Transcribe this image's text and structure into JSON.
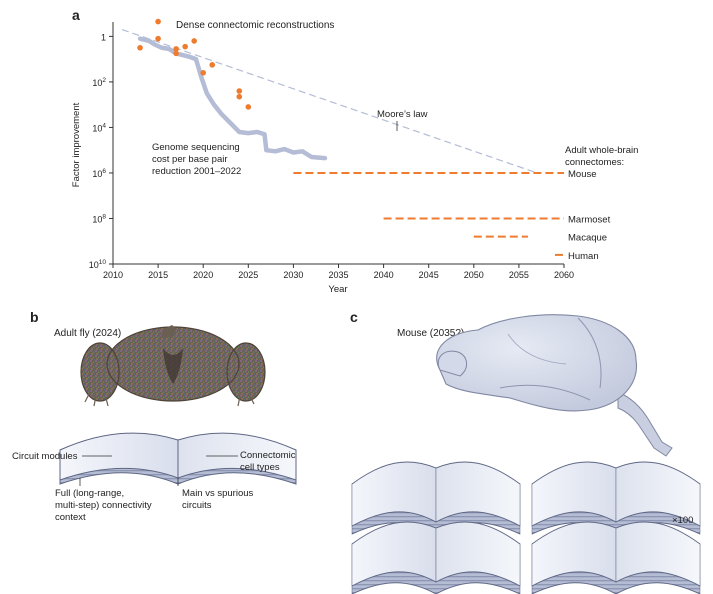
{
  "panels": {
    "a": "a",
    "b": "b",
    "c": "c"
  },
  "chart_data": {
    "type": "scatter",
    "xlabel": "Year",
    "ylabel": "Factor improvement",
    "xlim": [
      2010,
      2060
    ],
    "ylim_log10": [
      -10,
      0.5
    ],
    "x_ticks": [
      "2010",
      "2015",
      "2020",
      "2025",
      "2030",
      "2035",
      "2040",
      "2045",
      "2050",
      "2055",
      "2060"
    ],
    "y_ticks": [
      {
        "base": "1",
        "exp": ""
      },
      {
        "base": "10",
        "exp": "2"
      },
      {
        "base": "10",
        "exp": "4"
      },
      {
        "base": "10",
        "exp": "6"
      },
      {
        "base": "10",
        "exp": "8"
      },
      {
        "base": "10",
        "exp": "10"
      }
    ],
    "series": [
      {
        "name": "Dense connectomic reconstructions",
        "style": "scatter",
        "color": "#ee7b2e",
        "points": [
          {
            "x": 2013,
            "y_log10": -0.5
          },
          {
            "x": 2015,
            "y_log10": 0.65
          },
          {
            "x": 2015,
            "y_log10": -0.1
          },
          {
            "x": 2017,
            "y_log10": -0.55
          },
          {
            "x": 2017,
            "y_log10": -0.75
          },
          {
            "x": 2018,
            "y_log10": -0.45
          },
          {
            "x": 2019,
            "y_log10": -0.2
          },
          {
            "x": 2020,
            "y_log10": -1.6
          },
          {
            "x": 2021,
            "y_log10": -1.25
          },
          {
            "x": 2024,
            "y_log10": -2.4
          },
          {
            "x": 2024,
            "y_log10": -2.65
          },
          {
            "x": 2025,
            "y_log10": -3.1
          }
        ]
      },
      {
        "name": "Genome sequencing cost per base pair reduction 2001–2022",
        "style": "line",
        "color": "#b4bcd6",
        "points": [
          {
            "x": 2013,
            "y_log10": -0.1
          },
          {
            "x": 2014,
            "y_log10": -0.2
          },
          {
            "x": 2014.6,
            "y_log10": -0.35
          },
          {
            "x": 2015.4,
            "y_log10": -0.5
          },
          {
            "x": 2016.2,
            "y_log10": -0.55
          },
          {
            "x": 2017,
            "y_log10": -0.75
          },
          {
            "x": 2018.5,
            "y_log10": -0.9
          },
          {
            "x": 2019.2,
            "y_log10": -1.0
          },
          {
            "x": 2019.8,
            "y_log10": -1.8
          },
          {
            "x": 2020.4,
            "y_log10": -2.5
          },
          {
            "x": 2021.2,
            "y_log10": -3.0
          },
          {
            "x": 2022,
            "y_log10": -3.4
          },
          {
            "x": 2023,
            "y_log10": -3.8
          },
          {
            "x": 2024,
            "y_log10": -4.2
          },
          {
            "x": 2025,
            "y_log10": -4.25
          },
          {
            "x": 2026,
            "y_log10": -4.2
          },
          {
            "x": 2026.8,
            "y_log10": -4.3
          },
          {
            "x": 2027,
            "y_log10": -5.0
          },
          {
            "x": 2028,
            "y_log10": -5.05
          },
          {
            "x": 2029,
            "y_log10": -4.95
          },
          {
            "x": 2030,
            "y_log10": -5.1
          },
          {
            "x": 2031,
            "y_log10": -5.05
          },
          {
            "x": 2032,
            "y_log10": -5.3
          },
          {
            "x": 2033.5,
            "y_log10": -5.35
          }
        ]
      },
      {
        "name": "Moore's law",
        "style": "dashed-line",
        "color": "#b4bcd6",
        "points": [
          {
            "x": 2011,
            "y_log10": 0.3
          },
          {
            "x": 2057,
            "y_log10": -6.0
          }
        ]
      }
    ],
    "ranges": [
      {
        "label": "Mouse",
        "x_start": 2030,
        "x_end": 2060,
        "y_log10": -6.0
      },
      {
        "label": "Marmoset",
        "x_start": 2040,
        "x_end": 2060,
        "y_log10": -8.0
      },
      {
        "label": "Macaque",
        "x_start": 2050,
        "x_end": 2056,
        "y_log10": -8.8
      },
      {
        "label": "Human",
        "x_start": 2059,
        "x_end": 2060,
        "y_log10": -9.6
      }
    ],
    "annotations": {
      "dense": "Dense connectomic reconstructions",
      "moore": "Moore’s law",
      "genome_1": "Genome sequencing",
      "genome_2": "cost per base pair",
      "genome_3": "reduction 2001–2022",
      "adult_1": "Adult whole-brain",
      "adult_2": "connectomes:"
    },
    "colors": {
      "orange": "#ee7b2e",
      "lavender": "#b4bcd6",
      "axis": "#333333"
    }
  },
  "panel_b": {
    "title": "Adult fly (2024)",
    "labels": {
      "circuit_modules": "Circuit modules",
      "connectomic_1": "Connectomic",
      "connectomic_2": "cell types",
      "full_1": "Full (long-range,",
      "full_2": "multi-step) connectivity",
      "full_3": "context",
      "main_1": "Main vs spurious",
      "main_2": "circuits"
    }
  },
  "panel_c": {
    "title": "Mouse (2035?)",
    "multiplier": "×100"
  }
}
